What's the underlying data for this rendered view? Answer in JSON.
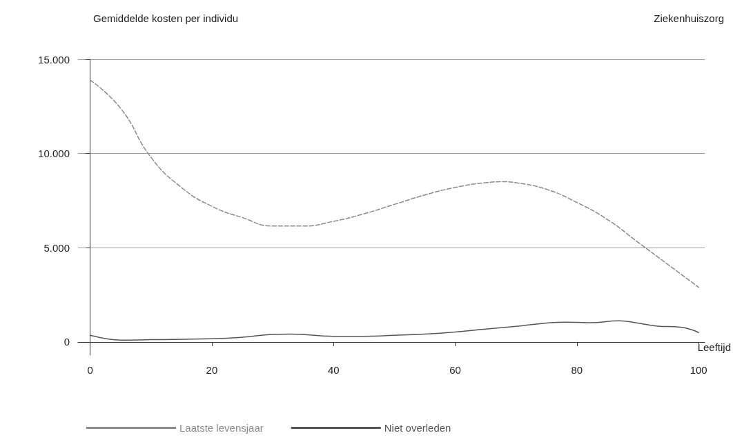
{
  "chart_data": {
    "type": "line",
    "title": "Ziekenhuiszorg",
    "ylabel": "Gemiddelde kosten per individu",
    "xlabel": "Leeftijd",
    "xlim": [
      -2,
      101
    ],
    "xticks": [
      0,
      20,
      40,
      60,
      80,
      100
    ],
    "ylim": [
      -700,
      15000
    ],
    "yticks": [
      0,
      {
        "value": 5000,
        "label": "5.000"
      },
      {
        "value": 10000,
        "label": "10.000"
      },
      {
        "value": 15000,
        "label": "15.000"
      }
    ],
    "grid": "y",
    "legend": "bottom",
    "series": [
      {
        "name": "Laatste levensjaar",
        "color": "#8a8a8a",
        "line_style": "dashed",
        "x": [
          0,
          5,
          10,
          15,
          20,
          25,
          30,
          35,
          40,
          45,
          50,
          55,
          60,
          65,
          68,
          70,
          75,
          80,
          85,
          90,
          95,
          100
        ],
        "values": [
          13900,
          12400,
          9800,
          8200,
          7200,
          6600,
          6150,
          6150,
          6400,
          6800,
          7300,
          7800,
          8200,
          8450,
          8500,
          8450,
          8100,
          7400,
          6500,
          5300,
          4100,
          2900
        ]
      },
      {
        "name": "Niet overleden",
        "color": "#555555",
        "line_style": "solid",
        "x": [
          0,
          3,
          5,
          10,
          20,
          25,
          30,
          33,
          40,
          45,
          50,
          55,
          60,
          65,
          70,
          75,
          78,
          82,
          87,
          90,
          93,
          97,
          100
        ],
        "values": [
          350,
          150,
          100,
          120,
          170,
          250,
          400,
          420,
          300,
          300,
          350,
          420,
          530,
          680,
          830,
          1000,
          1050,
          1020,
          1120,
          1000,
          850,
          780,
          500
        ]
      }
    ]
  }
}
